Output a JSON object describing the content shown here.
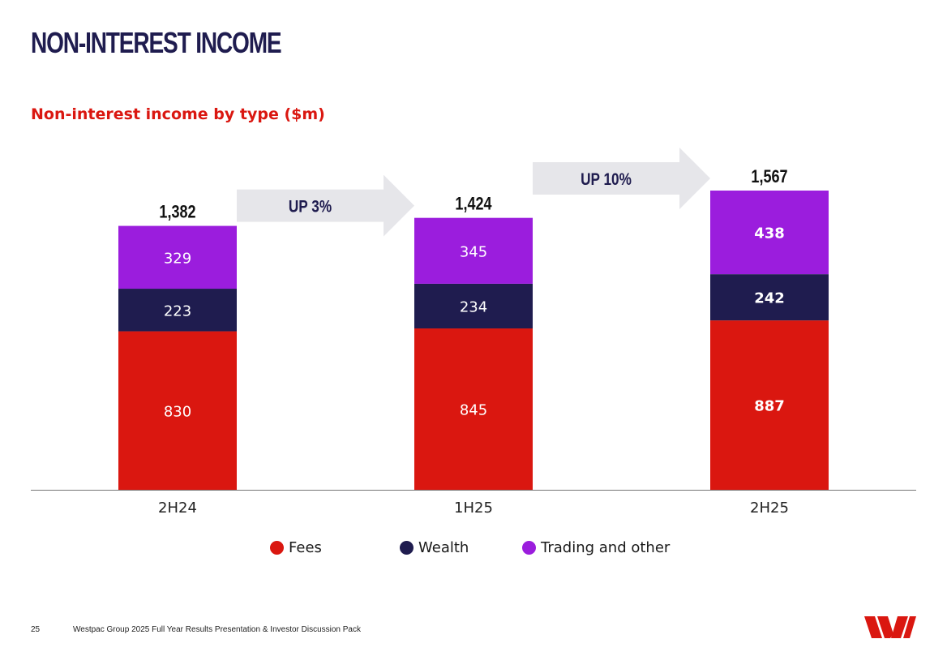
{
  "page_title": "NON-INTEREST INCOME",
  "chart_subtitle": "Non-interest income by type ($m)",
  "chart_data": {
    "type": "bar",
    "stacked": true,
    "title": "Non-interest income by type ($m)",
    "categories": [
      "2H24",
      "1H25",
      "2H25"
    ],
    "series": [
      {
        "name": "Fees",
        "values": [
          830,
          845,
          887
        ],
        "color": "#da1710"
      },
      {
        "name": "Wealth",
        "values": [
          223,
          234,
          242
        ],
        "color": "#1f1c4f"
      },
      {
        "name": "Trading and other",
        "values": [
          329,
          345,
          438
        ],
        "color": "#9b1ddd"
      }
    ],
    "totals": [
      "1,382",
      "1,424",
      "1,567"
    ],
    "annotations": [
      {
        "from": "2H24",
        "to": "1H25",
        "text": "UP 3%"
      },
      {
        "from": "1H25",
        "to": "2H25",
        "text": "UP 10%"
      }
    ],
    "ylim": [
      0,
      1567
    ],
    "legend_position": "bottom-center",
    "grid": false
  },
  "legend": {
    "items": [
      {
        "label": "Fees",
        "color": "#da1710"
      },
      {
        "label": "Wealth",
        "color": "#1f1c4f"
      },
      {
        "label": "Trading and other",
        "color": "#9b1ddd"
      }
    ]
  },
  "footer": {
    "page_number": "25",
    "text": "Westpac Group 2025 Full Year Results Presentation & Investor Discussion Pack"
  },
  "logo_icon": "westpac-logo-icon"
}
